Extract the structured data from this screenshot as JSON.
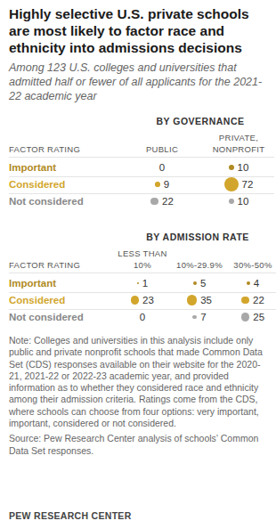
{
  "title": "Highly selective U.S. private schools are most likely to factor race and ethnicity into admissions decisions",
  "subtitle": "Among 123 U.S. colleges and universities that admitted half or fewer of all applicants for the 2021-22 academic year",
  "note": "Note: Colleges and universities in this analysis include only public and private nonprofit schools that made Common Data Set (CDS) responses available on their website for the 2020-21, 2021-22 or 2022-23 academic year, and provided information as to whether they considered race and ethnicity among their admission criteria. Ratings come from the CDS, where schools can choose from four options: very important, important, considered or not considered.",
  "source": "Source: Pew Research Center analysis of schools’ Common Data Set responses.",
  "credit": "PEW RESEARCH CENTER",
  "chart_data": [
    {
      "type": "dot_table",
      "title": "BY GOVERNANCE",
      "row_header": "FACTOR RATING",
      "categories": [
        "Important",
        "Considered",
        "Not considered"
      ],
      "colors": [
        "#b08a22",
        "#d2a62c",
        "#a8a8a8"
      ],
      "data_labels": true,
      "series": [
        {
          "name": "PUBLIC",
          "values": [
            0,
            9,
            22
          ]
        },
        {
          "name": "PRIVATE, NONPROFIT",
          "values": [
            10,
            72,
            10
          ]
        }
      ]
    },
    {
      "type": "dot_table",
      "title": "BY ADMISSION RATE",
      "row_header": "FACTOR RATING",
      "categories": [
        "Important",
        "Considered",
        "Not considered"
      ],
      "colors": [
        "#b08a22",
        "#d2a62c",
        "#a8a8a8"
      ],
      "data_labels": true,
      "series": [
        {
          "name": "LESS THAN 10%",
          "values": [
            1,
            23,
            0
          ]
        },
        {
          "name": "10%-29.9%",
          "values": [
            5,
            35,
            7
          ]
        },
        {
          "name": "30%-50%",
          "values": [
            4,
            22,
            25
          ]
        }
      ]
    }
  ]
}
